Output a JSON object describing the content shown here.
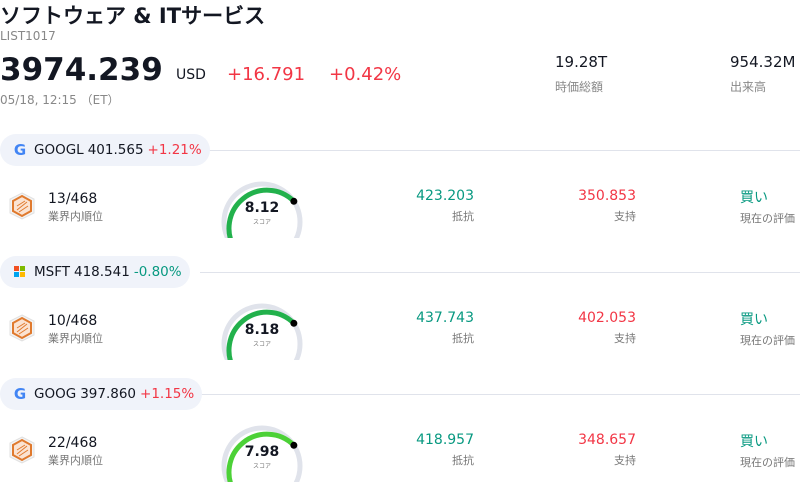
{
  "header": {
    "title": "ソフトウェア & ITサービス",
    "code": "LIST1017",
    "price": "3974.239",
    "currency": "USD",
    "change": "+16.791",
    "change_pct": "+0.42%",
    "time": "05/18, 12:15 （ET）",
    "stats": [
      {
        "value": "19.28T",
        "label": "時価総額"
      },
      {
        "value": "954.32M",
        "label": "出来高"
      }
    ]
  },
  "stocks": [
    {
      "icon": "google",
      "ticker": "GOOGL",
      "price": "401.565",
      "change": "+1.21%",
      "change_color": "#f23645",
      "rank": "13/468",
      "rank_label": "業界内順位",
      "score": "8.12",
      "score_label": "スコア",
      "gauge_color": "#22b14c",
      "resistance": "423.203",
      "resistance_label": "抵抗",
      "support": "350.853",
      "support_label": "支持",
      "rating": "買い",
      "rating_label": "現在の評価"
    },
    {
      "icon": "microsoft",
      "ticker": "MSFT",
      "price": "418.541",
      "change": "-0.80%",
      "change_color": "#089981",
      "rank": "10/468",
      "rank_label": "業界内順位",
      "score": "8.18",
      "score_label": "スコア",
      "gauge_color": "#22b14c",
      "resistance": "437.743",
      "resistance_label": "抵抗",
      "support": "402.053",
      "support_label": "支持",
      "rating": "買い",
      "rating_label": "現在の評価"
    },
    {
      "icon": "google",
      "ticker": "GOOG",
      "price": "397.860",
      "change": "+1.15%",
      "change_color": "#f23645",
      "rank": "22/468",
      "rank_label": "業界内順位",
      "score": "7.98",
      "score_label": "スコア",
      "gauge_color": "#4cd137",
      "resistance": "418.957",
      "resistance_label": "抵抗",
      "support": "348.657",
      "support_label": "支持",
      "rating": "買い",
      "rating_label": "現在の評価"
    }
  ]
}
